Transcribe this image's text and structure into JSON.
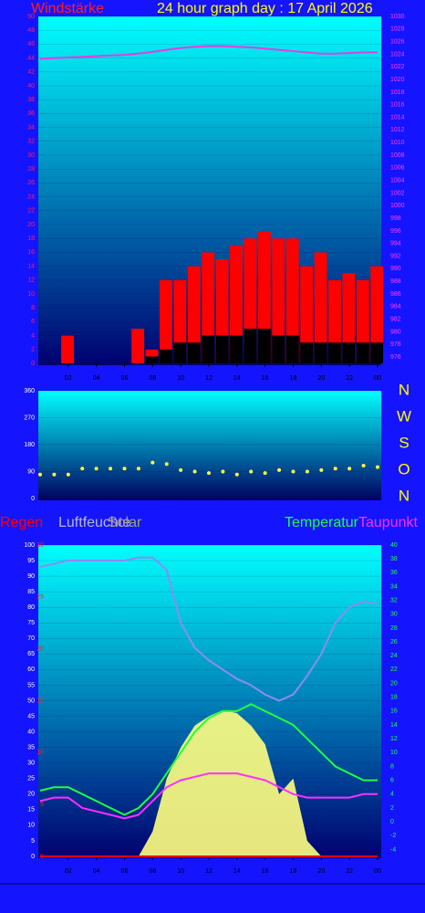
{
  "chart_data": [
    {
      "type": "bar",
      "title": "24 hour graph day : 17 April 2026",
      "x": [
        0,
        1,
        2,
        3,
        4,
        5,
        6,
        7,
        8,
        9,
        10,
        11,
        12,
        13,
        14,
        15,
        16,
        17,
        18,
        19,
        20,
        21,
        22,
        23,
        24
      ],
      "xlim": [
        0,
        24
      ],
      "xticks": [
        {
          "value": 2,
          "label": "02"
        },
        {
          "value": 4,
          "label": "04"
        },
        {
          "value": 6,
          "label": "06"
        },
        {
          "value": 8,
          "label": "08"
        },
        10,
        12,
        14,
        16,
        18,
        20,
        22,
        {
          "value": 24,
          "label": "00"
        }
      ],
      "ylim": [
        0,
        50
      ],
      "yticks": [
        0,
        2,
        4,
        6,
        8,
        10,
        12,
        14,
        16,
        18,
        20,
        22,
        24,
        26,
        28,
        30,
        32,
        34,
        36,
        38,
        40,
        42,
        44,
        46,
        48,
        50
      ],
      "y2lim": [
        975,
        1030
      ],
      "y2ticks": [
        976,
        978,
        980,
        982,
        984,
        986,
        988,
        990,
        992,
        994,
        996,
        998,
        1000,
        1002,
        1004,
        1006,
        1008,
        1010,
        1012,
        1014,
        1016,
        1018,
        1020,
        1022,
        1024,
        1026,
        1028,
        1030
      ],
      "series": [
        {
          "name": "Windstärke",
          "color": "#ff0000",
          "values": [
            0,
            0,
            4,
            0,
            0,
            0,
            0,
            5,
            2,
            12,
            12,
            14,
            16,
            15,
            17,
            18,
            19,
            18,
            18,
            14,
            16,
            12,
            13,
            12,
            14
          ]
        },
        {
          "color": "#000000",
          "values": [
            0,
            0,
            0,
            0,
            0,
            0,
            0,
            0,
            1,
            2,
            3,
            3,
            4,
            4,
            4,
            5,
            5,
            4,
            4,
            3,
            3,
            3,
            3,
            3,
            3
          ]
        },
        {
          "color": "#e040e0",
          "axis": "y2",
          "values": [
            1023.3,
            1023.4,
            1023.5,
            1023.6,
            1023.7,
            1023.8,
            1023.9,
            1024.1,
            1024.4,
            1024.7,
            1025.0,
            1025.2,
            1025.3,
            1025.3,
            1025.2,
            1025.1,
            1024.9,
            1024.7,
            1024.5,
            1024.3,
            1024.1,
            1024.1,
            1024.2,
            1024.3,
            1024.3
          ]
        }
      ]
    },
    {
      "type": "scatter",
      "x": [
        0,
        1,
        2,
        3,
        4,
        5,
        6,
        7,
        8,
        9,
        10,
        11,
        12,
        13,
        14,
        15,
        16,
        17,
        18,
        19,
        20,
        21,
        22,
        23,
        24
      ],
      "xlim": [
        0,
        24
      ],
      "ylim": [
        0,
        360
      ],
      "yticks": [
        0,
        90,
        180,
        270,
        360
      ],
      "direction_labels": [
        "N",
        "W",
        "S",
        "O",
        "N"
      ],
      "series": [
        {
          "color": "#ffff40",
          "values": [
            80,
            80,
            80,
            100,
            100,
            100,
            100,
            100,
            120,
            115,
            95,
            90,
            85,
            90,
            80,
            90,
            85,
            95,
            90,
            90,
            95,
            100,
            100,
            110,
            105
          ]
        }
      ]
    },
    {
      "type": "line",
      "x": [
        0,
        1,
        2,
        3,
        4,
        5,
        6,
        7,
        8,
        9,
        10,
        11,
        12,
        13,
        14,
        15,
        16,
        17,
        18,
        19,
        20,
        21,
        22,
        23,
        24
      ],
      "xlim": [
        0,
        24
      ],
      "xticks": [
        {
          "value": 2,
          "label": "02"
        },
        {
          "value": 4,
          "label": "04"
        },
        {
          "value": 6,
          "label": "06"
        },
        {
          "value": 8,
          "label": "08"
        },
        10,
        12,
        14,
        16,
        18,
        20,
        22,
        {
          "value": 24,
          "label": "00"
        }
      ],
      "ylim": [
        0,
        100
      ],
      "yticks": [
        0,
        5,
        10,
        15,
        20,
        25,
        30,
        35,
        40,
        45,
        50,
        55,
        60,
        65,
        70,
        75,
        80,
        85,
        90,
        95,
        100
      ],
      "y2lim": [
        -5,
        40
      ],
      "y2ticks": [
        -4,
        -2,
        0,
        2,
        4,
        6,
        8,
        10,
        12,
        14,
        16,
        18,
        20,
        22,
        24,
        26,
        28,
        30,
        32,
        34,
        36,
        38,
        40
      ],
      "y3lim": [
        0,
        30
      ],
      "y3ticks": [
        0,
        5,
        10,
        15,
        20,
        25,
        30
      ],
      "series": [
        {
          "name": "Regen",
          "color": "#ff0000",
          "axis": "y3",
          "values": [
            0,
            0,
            0,
            0,
            0,
            0,
            0,
            0,
            0,
            0,
            0,
            0,
            0,
            0,
            0,
            0,
            0,
            0,
            0,
            0,
            0,
            0,
            0,
            0,
            0
          ]
        },
        {
          "name": "Luftfeuchte",
          "color": "#8c8cf0",
          "values": [
            93,
            94,
            95,
            95,
            95,
            95,
            95,
            96,
            96,
            92,
            75,
            67,
            63,
            60,
            57,
            55,
            52,
            50,
            52,
            58,
            65,
            75,
            80,
            82,
            81
          ]
        },
        {
          "name": "Solar",
          "color": "#ffff80",
          "values": [
            0,
            0,
            0,
            0,
            0,
            0,
            0,
            0,
            8,
            25,
            35,
            42,
            45,
            47,
            46,
            42,
            36,
            20,
            25,
            5,
            0,
            0,
            0,
            0,
            0
          ]
        },
        {
          "name": "Temperatur",
          "color": "#20ff40",
          "axis": "y2",
          "values": [
            4.5,
            5,
            5,
            4,
            3,
            2,
            1,
            2,
            4,
            7,
            10,
            13,
            15,
            16,
            16,
            17,
            16,
            15,
            14,
            12,
            10,
            8,
            7,
            6,
            6
          ]
        },
        {
          "name": "Taupunkt",
          "color": "#ff30ff",
          "axis": "y2",
          "values": [
            3,
            3.5,
            3.5,
            2,
            1.5,
            1,
            0.5,
            1,
            3,
            5,
            6,
            6.5,
            7,
            7,
            7,
            6.5,
            6,
            5,
            4,
            3.5,
            3.5,
            3.5,
            3.5,
            4,
            4
          ]
        }
      ]
    }
  ]
}
